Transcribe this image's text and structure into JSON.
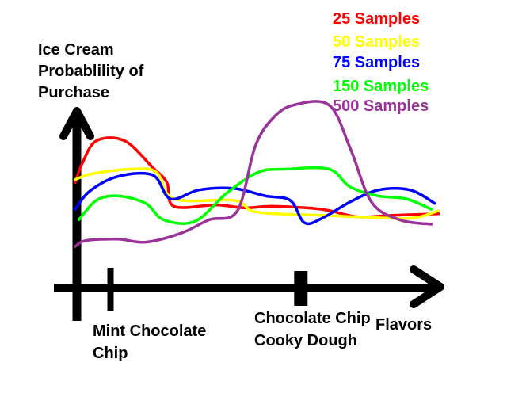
{
  "chart_data": {
    "type": "line",
    "ylabel": "Ice Cream Probablility of Purchase",
    "xlabel": "Flavors",
    "x_domain": [
      0,
      10
    ],
    "y_domain": [
      0,
      10
    ],
    "x_ticks": [
      {
        "x": 1,
        "label": "Mint Chocolate Chip"
      },
      {
        "x": 6.4,
        "label": "Chocolate Chip Cooky Dough"
      }
    ],
    "grid": false,
    "legend_position": "top-right",
    "series": [
      {
        "name": "25 Samples",
        "color": "#ff0000",
        "points": [
          [
            0,
            5.3
          ],
          [
            0.2,
            6.6
          ],
          [
            0.6,
            8.1
          ],
          [
            1.4,
            8.1
          ],
          [
            2.2,
            6.3
          ],
          [
            2.6,
            5.3
          ],
          [
            2.8,
            3.7
          ],
          [
            4.0,
            3.8
          ],
          [
            4.8,
            3.6
          ],
          [
            5.6,
            3.7
          ],
          [
            7.0,
            3.5
          ],
          [
            8.0,
            3.0
          ],
          [
            9.0,
            3.1
          ],
          [
            10.3,
            3.2
          ]
        ]
      },
      {
        "name": "50 Samples",
        "color": "#ffff00",
        "points": [
          [
            0,
            5.5
          ],
          [
            0.5,
            5.9
          ],
          [
            1.6,
            6.2
          ],
          [
            2.3,
            6.0
          ],
          [
            2.8,
            4.2
          ],
          [
            4.5,
            4.1
          ],
          [
            5.0,
            3.4
          ],
          [
            5.7,
            3.2
          ],
          [
            7.0,
            3.1
          ],
          [
            8.0,
            3.0
          ],
          [
            9.5,
            2.9
          ],
          [
            10.3,
            3.4
          ]
        ]
      },
      {
        "name": "75 Samples",
        "color": "#0000ff",
        "points": [
          [
            0,
            3.5
          ],
          [
            0.4,
            4.7
          ],
          [
            1.2,
            5.7
          ],
          [
            2.2,
            5.8
          ],
          [
            2.7,
            4.2
          ],
          [
            3.5,
            4.8
          ],
          [
            4.5,
            4.9
          ],
          [
            5.4,
            4.4
          ],
          [
            6.1,
            4.1
          ],
          [
            6.5,
            2.6
          ],
          [
            7.0,
            2.9
          ],
          [
            7.8,
            4.0
          ],
          [
            8.6,
            4.8
          ],
          [
            9.5,
            4.8
          ],
          [
            10.2,
            3.9
          ]
        ]
      },
      {
        "name": "150 Samples",
        "color": "#00ff00",
        "points": [
          [
            0.1,
            2.8
          ],
          [
            0.6,
            4.1
          ],
          [
            1.2,
            4.4
          ],
          [
            2.0,
            3.9
          ],
          [
            2.5,
            2.8
          ],
          [
            3.4,
            2.7
          ],
          [
            4.3,
            4.6
          ],
          [
            5.2,
            6.0
          ],
          [
            6.0,
            6.2
          ],
          [
            7.2,
            6.2
          ],
          [
            7.8,
            5.0
          ],
          [
            8.6,
            4.4
          ],
          [
            9.4,
            4.2
          ],
          [
            10.1,
            3.5
          ]
        ]
      },
      {
        "name": "500 Samples",
        "color": "#993399",
        "points": [
          [
            0,
            1.0
          ],
          [
            0.3,
            1.4
          ],
          [
            1.2,
            1.5
          ],
          [
            2.0,
            1.3
          ],
          [
            3.0,
            1.9
          ],
          [
            3.8,
            2.8
          ],
          [
            4.6,
            3.4
          ],
          [
            5.1,
            7.7
          ],
          [
            5.6,
            9.6
          ],
          [
            6.2,
            10.5
          ],
          [
            7.2,
            10.5
          ],
          [
            7.8,
            7.6
          ],
          [
            8.4,
            4.0
          ],
          [
            9.2,
            2.8
          ],
          [
            10.1,
            2.5
          ]
        ]
      }
    ]
  }
}
